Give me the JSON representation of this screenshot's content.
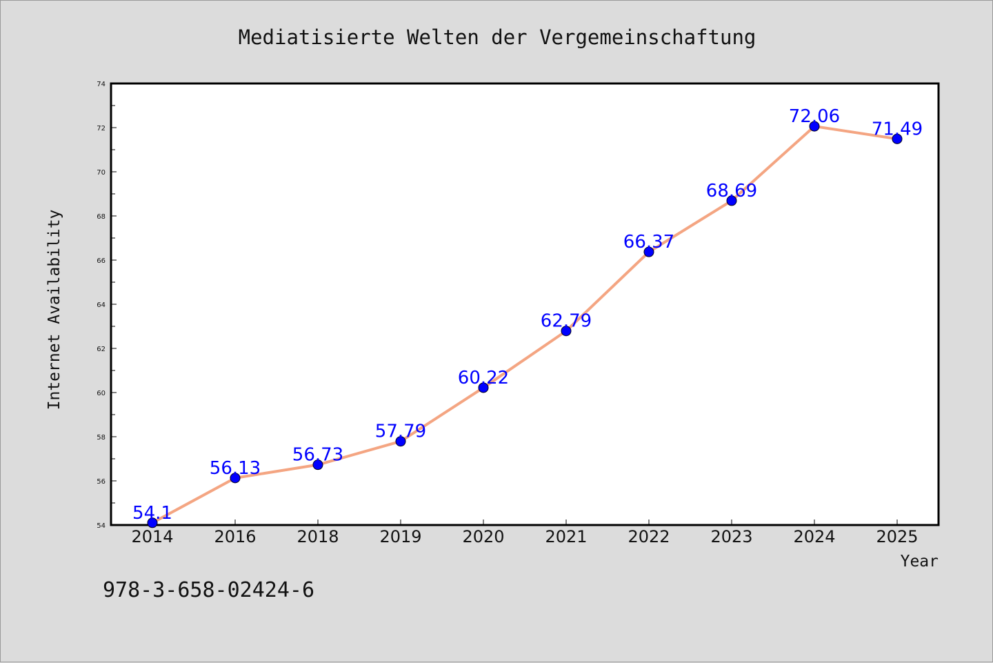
{
  "chart_data": {
    "type": "line",
    "title": "Mediatisierte Welten der Vergemeinschaftung",
    "xlabel": "Year",
    "ylabel": "Internet Availability",
    "categories": [
      "2014",
      "2016",
      "2018",
      "2019",
      "2020",
      "2021",
      "2022",
      "2023",
      "2024",
      "2025"
    ],
    "series": [
      {
        "values": [
          54.1,
          56.13,
          56.73,
          57.79,
          60.22,
          62.79,
          66.37,
          68.69,
          72.06,
          71.49
        ],
        "line_color": "#f4a582",
        "marker_color": "#0000ff"
      }
    ],
    "data_labels": [
      "54.1",
      "56.13",
      "56.73",
      "57.79",
      "60.22",
      "62.79",
      "66.37",
      "68.69",
      "72.06",
      "71.49"
    ],
    "data_label_color": "#0000ff",
    "ylim": [
      54,
      74
    ],
    "yticks": [
      "54",
      "56",
      "58",
      "60",
      "62",
      "64",
      "66",
      "68",
      "70",
      "72",
      "74"
    ],
    "grid": false,
    "legend": "none"
  },
  "footer": {
    "isbn": "978-3-658-02424-6"
  }
}
